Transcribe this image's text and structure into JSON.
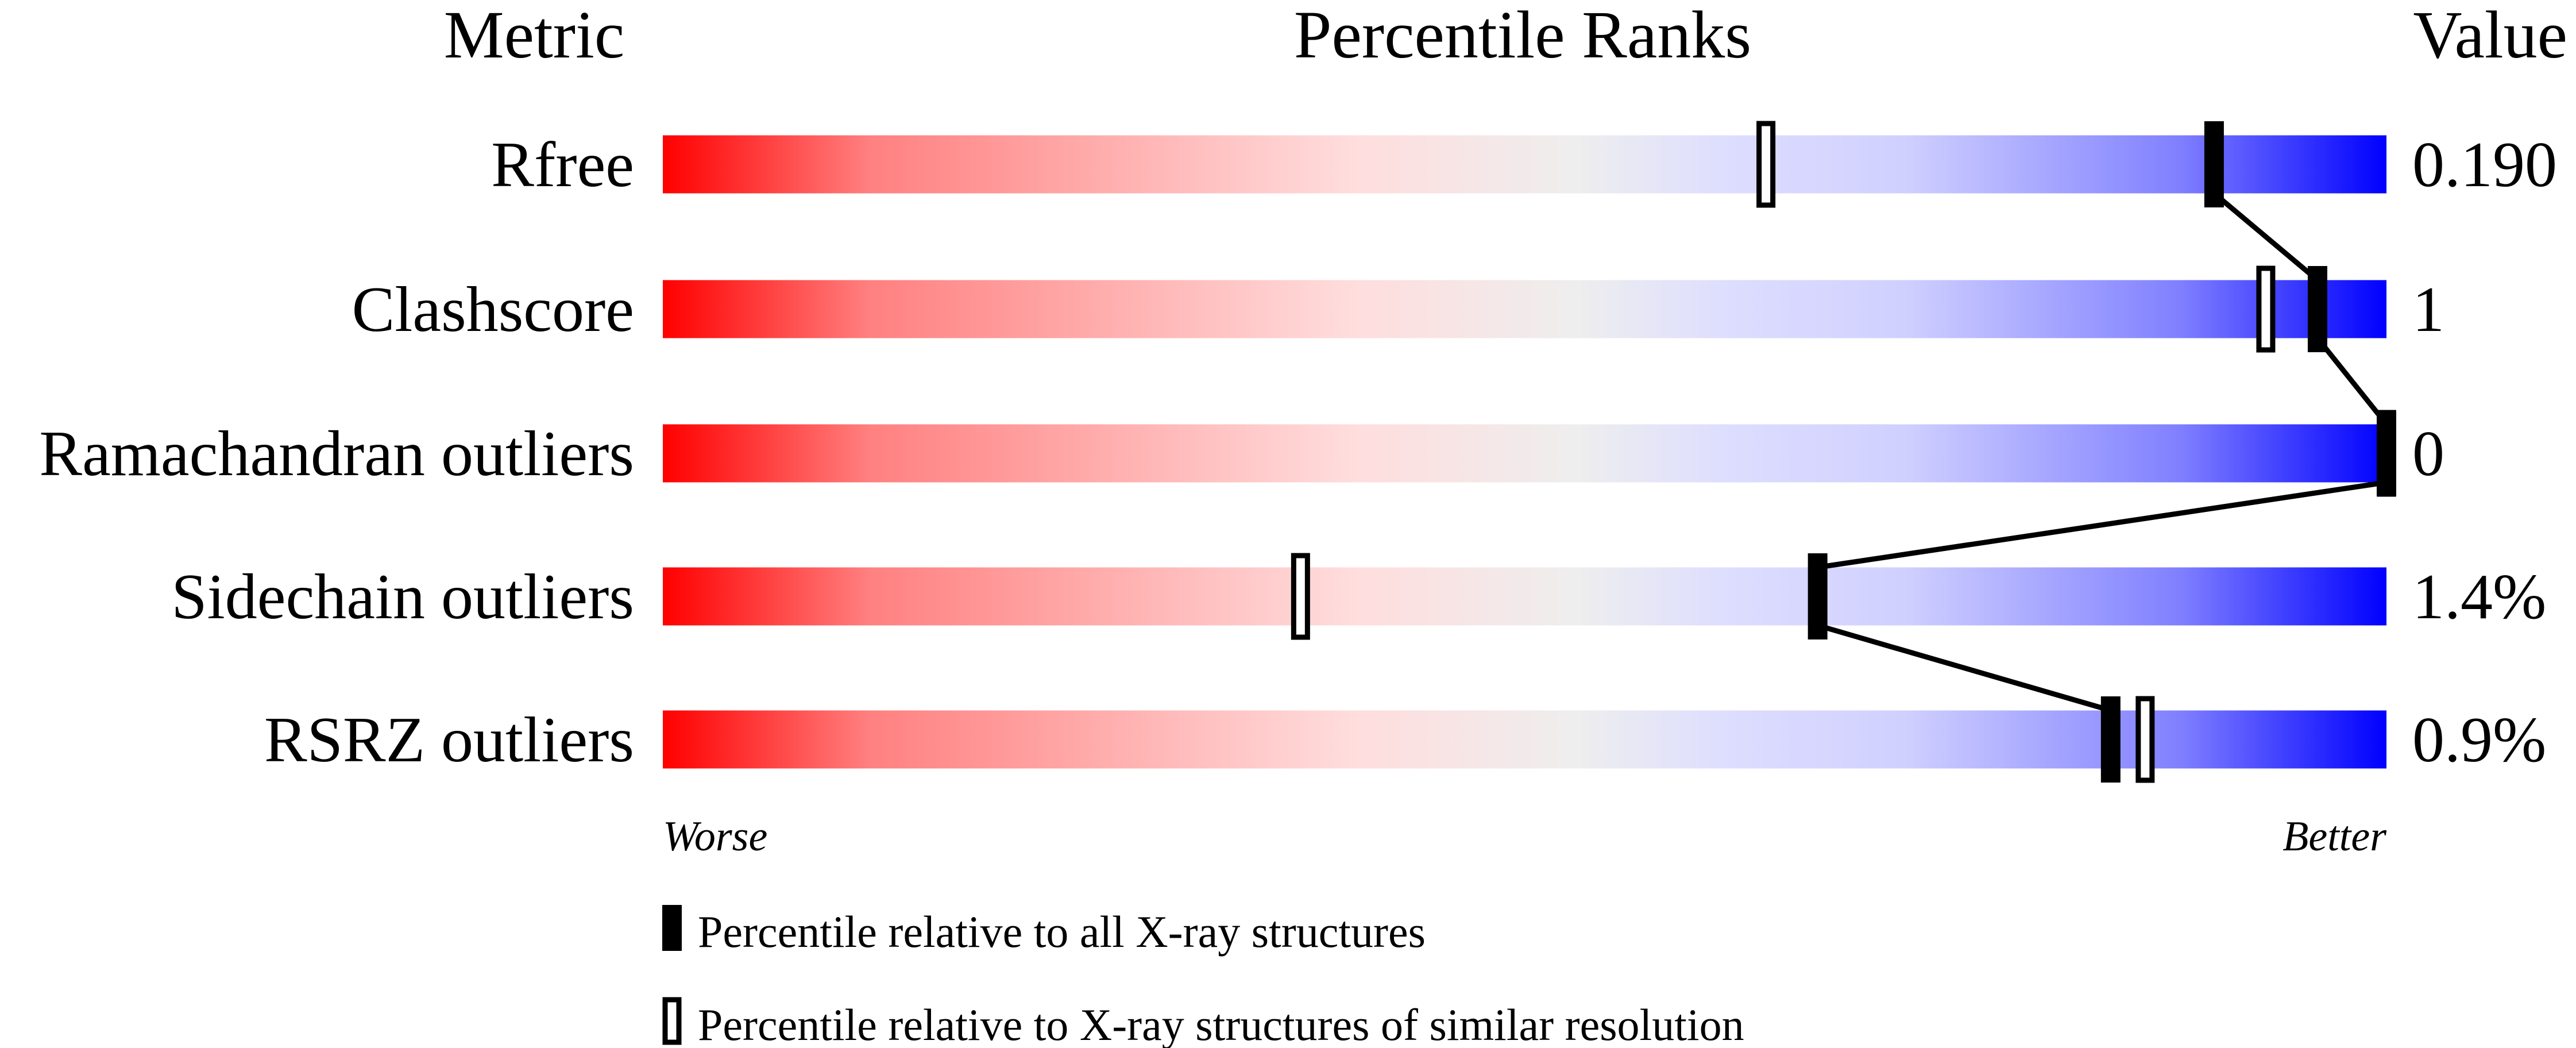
{
  "chart_data": {
    "type": "bar",
    "headers": {
      "metric": "Metric",
      "ranks": "Percentile Ranks",
      "value": "Value"
    },
    "xlim": [
      0,
      100
    ],
    "gradient_colors": [
      "#ff0000",
      "#ff8080",
      "#ffdddd",
      "#eeeeee",
      "#ddddff",
      "#d0d0ff",
      "#8080ff",
      "#0000ff"
    ],
    "rows": [
      {
        "metric": "Rfree",
        "value": "0.190",
        "percentile_all": 90,
        "percentile_similar": 64
      },
      {
        "metric": "Clashscore",
        "value": "1",
        "percentile_all": 96,
        "percentile_similar": 93
      },
      {
        "metric": "Ramachandran outliers",
        "value": "0",
        "percentile_all": 100,
        "percentile_similar": 100
      },
      {
        "metric": "Sidechain outliers",
        "value": "1.4%",
        "percentile_all": 67,
        "percentile_similar": 37
      },
      {
        "metric": "RSRZ outliers",
        "value": "0.9%",
        "percentile_all": 84,
        "percentile_similar": 86
      }
    ],
    "axis": {
      "left": "Worse",
      "right": "Better"
    },
    "legend": {
      "all": "Percentile relative to all X-ray structures",
      "similar": "Percentile relative to X-ray structures of similar resolution"
    }
  }
}
